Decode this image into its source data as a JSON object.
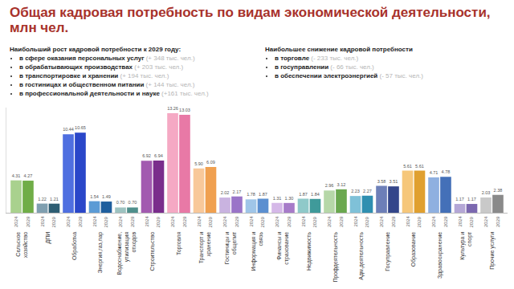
{
  "chart_data": {
    "type": "bar",
    "title": "Общая кадровая потребность по видам экономической деятельности, млн чел.",
    "categories": [
      "Сельское хозяйство",
      "ДПИ",
      "Обработка",
      "Энергия,газ,пар",
      "Водоснабжение, утилизация отходов",
      "Строительство",
      "Торговля",
      "Транспорт и хранение",
      "Гостиницы и общепит",
      "Информация и связь",
      "Финансы и страхование",
      "Недвижимость",
      "Профдеятельность",
      "Адм.деятельность",
      "Госуправление",
      "Образование",
      "Здравоохранение",
      "Культура и спорт",
      "Прочие услуги"
    ],
    "series": [
      {
        "name": "2024",
        "values": [
          4.31,
          1.22,
          10.44,
          1.54,
          0.7,
          6.92,
          13.26,
          5.9,
          2.02,
          1.78,
          1.31,
          1.87,
          2.96,
          2.23,
          3.58,
          5.61,
          4.71,
          1.17,
          2.03
        ],
        "value_labels": [
          "4.31",
          "1.22",
          "10.44",
          "1.54",
          "0.70",
          "6.92",
          "13.26",
          "5.90",
          "2.02",
          "1.78",
          "1.31",
          "1.87",
          "2.96",
          "2.23",
          "3.58",
          "5.61",
          "4.71",
          "1.17",
          "2.03"
        ],
        "colors": [
          "#a9d18e",
          "#7f9fb0",
          "#4f6fe0",
          "#5b9bd5",
          "#9dc3c1",
          "#a25ab0",
          "#f5a9c4",
          "#f8c89a",
          "#c9b3e0",
          "#9fc5e8",
          "#d5b8e8",
          "#8fc9c9",
          "#b6d7a8",
          "#7fc1d8",
          "#6d7fb8",
          "#f6c77a",
          "#8fb0e0",
          "#b4a7d6",
          "#c9c9c9"
        ]
      },
      {
        "name": "2029",
        "values": [
          4.27,
          1.21,
          10.65,
          1.49,
          0.7,
          6.94,
          13.03,
          6.09,
          2.17,
          1.87,
          1.3,
          1.84,
          3.12,
          2.27,
          3.51,
          5.61,
          4.78,
          1.17,
          2.38
        ],
        "value_labels": [
          "4.27",
          "1.21",
          "10.65",
          "1.49",
          "0.70",
          "6.94",
          "13.03",
          "6.09",
          "2.17",
          "1.87",
          "1.30",
          "1.84",
          "3.12",
          "2.27",
          "3.51",
          "5.61",
          "4.78",
          "1.17",
          "2.38"
        ],
        "colors": [
          "#70ad47",
          "#2e5e73",
          "#2a47c9",
          "#1f5f9e",
          "#4f8f8c",
          "#7a2d8c",
          "#e879a6",
          "#f0a050",
          "#9a74c8",
          "#5b8fd0",
          "#a77bc9",
          "#3f9a9a",
          "#6aa84f",
          "#2f8fb0",
          "#34468a",
          "#e0a030",
          "#4470b8",
          "#7b68b0",
          "#8a8a8a"
        ]
      }
    ],
    "ylim": [
      0,
      14
    ],
    "grid": false,
    "data_labels": true,
    "tick_labels": "x"
  },
  "growth": {
    "heading": "Наибольший рост кадровой потребности к 2029 году:",
    "items": [
      {
        "text": "в сфере оказания персональных услуг",
        "value": "(+ 348 тыс. чел.)"
      },
      {
        "text": "в обрабатывающих производствах",
        "value": "(+ 203 тыс. чел.)"
      },
      {
        "text": "в транспортировке и хранении",
        "value": "(+ 194 тыс. чел.)"
      },
      {
        "text": "в гостиницах и общественном питании",
        "value": "(+ 144 тыс. чел.)"
      },
      {
        "text": "в профессиональной деятельности и науке",
        "value": "(+161 тыс. чел.)"
      }
    ]
  },
  "decline": {
    "heading": "Наибольшее снижение кадровой потребности",
    "items": [
      {
        "text": "в торговле",
        "value": "(- 233 тыс. чел.)"
      },
      {
        "text": "в госуправлении",
        "value": "(- 66 тыс. чел.)"
      },
      {
        "text": "в обеспечении электроэнергией",
        "value": "(- 57 тыс. чел.)"
      }
    ]
  }
}
